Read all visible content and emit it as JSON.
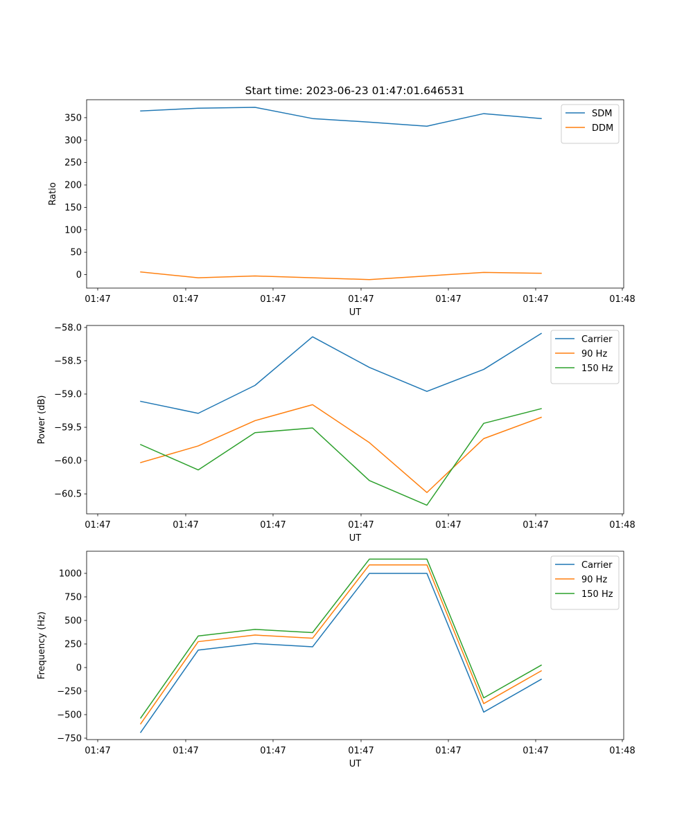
{
  "figure": {
    "title": "Start time: 2023-06-23 01:47:01.646531"
  },
  "colors": {
    "blue": "#1f77b4",
    "orange": "#ff7f0e",
    "green": "#2ca02c"
  },
  "chart_data": [
    {
      "type": "line",
      "title": "Start time: 2023-06-23 01:47:01.646531",
      "xlabel": "UT",
      "ylabel": "Ratio",
      "x_tick_labels": [
        "01:47",
        "01:47",
        "01:47",
        "01:47",
        "01:47",
        "01:47",
        "01:48"
      ],
      "y_ticks": [
        0,
        50,
        100,
        150,
        200,
        250,
        300,
        350
      ],
      "ylim": [
        -30,
        390
      ],
      "legend_position": "top-right",
      "grid": false,
      "series": [
        {
          "name": "SDM",
          "color": "blue",
          "values": [
            365,
            371,
            373,
            348,
            340,
            331,
            359,
            348
          ]
        },
        {
          "name": "DDM",
          "color": "orange",
          "values": [
            6,
            -7,
            -3,
            -7,
            -11,
            -3,
            5,
            3
          ]
        }
      ]
    },
    {
      "type": "line",
      "title": "",
      "xlabel": "UT",
      "ylabel": "Power (dB)",
      "x_tick_labels": [
        "01:47",
        "01:47",
        "01:47",
        "01:47",
        "01:47",
        "01:47",
        "01:48"
      ],
      "y_ticks": [
        -58.0,
        -58.5,
        -59.0,
        -59.5,
        -60.0,
        -60.5
      ],
      "y_tick_labels": [
        "−58.0",
        "−58.5",
        "−59.0",
        "−59.5",
        "−60.0",
        "−60.5"
      ],
      "ylim": [
        -60.8,
        -57.97
      ],
      "legend_position": "top-right",
      "grid": false,
      "series": [
        {
          "name": "Carrier",
          "color": "blue",
          "values": [
            -59.11,
            -59.29,
            -58.87,
            -58.14,
            -58.6,
            -58.96,
            -58.63,
            -58.09
          ]
        },
        {
          "name": "90 Hz",
          "color": "orange",
          "values": [
            -60.03,
            -59.78,
            -59.4,
            -59.16,
            -59.73,
            -60.48,
            -59.67,
            -59.35
          ]
        },
        {
          "name": "150 Hz",
          "color": "green",
          "values": [
            -59.76,
            -60.14,
            -59.58,
            -59.51,
            -60.3,
            -60.67,
            -59.44,
            -59.22
          ]
        }
      ]
    },
    {
      "type": "line",
      "title": "",
      "xlabel": "UT",
      "ylabel": "Frequency (Hz)",
      "x_tick_labels": [
        "01:47",
        "01:47",
        "01:47",
        "01:47",
        "01:47",
        "01:47",
        "01:48"
      ],
      "y_ticks": [
        -750,
        -500,
        -250,
        0,
        250,
        500,
        750,
        1000
      ],
      "y_tick_labels": [
        "−750",
        "−500",
        "−250",
        "0",
        "250",
        "500",
        "750",
        "1000"
      ],
      "ylim": [
        -765,
        1235
      ],
      "legend_position": "top-right",
      "grid": false,
      "series": [
        {
          "name": "Carrier",
          "color": "blue",
          "values": [
            -688,
            185,
            255,
            220,
            1000,
            1000,
            -473,
            -125
          ]
        },
        {
          "name": "90 Hz",
          "color": "orange",
          "values": [
            -597,
            275,
            345,
            311,
            1090,
            1090,
            -383,
            -35
          ]
        },
        {
          "name": "150 Hz",
          "color": "green",
          "values": [
            -536,
            335,
            405,
            371,
            1151,
            1151,
            -322,
            25
          ]
        }
      ]
    }
  ]
}
